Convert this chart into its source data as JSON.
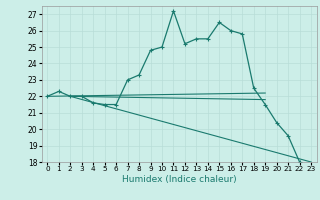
{
  "xlabel": "Humidex (Indice chaleur)",
  "bg_color": "#cceee8",
  "grid_color": "#b8ddd8",
  "line_color": "#1a7a6e",
  "xlim": [
    -0.5,
    23.5
  ],
  "ylim": [
    18,
    27.5
  ],
  "yticks": [
    18,
    19,
    20,
    21,
    22,
    23,
    24,
    25,
    26,
    27
  ],
  "xticks": [
    0,
    1,
    2,
    3,
    4,
    5,
    6,
    7,
    8,
    9,
    10,
    11,
    12,
    13,
    14,
    15,
    16,
    17,
    18,
    19,
    20,
    21,
    22,
    23
  ],
  "main_x": [
    0,
    1,
    2,
    3,
    4,
    5,
    6,
    7,
    8,
    9,
    10,
    11,
    12,
    13,
    14,
    15,
    16,
    17,
    18,
    19,
    20,
    21,
    22
  ],
  "main_y": [
    22,
    22.3,
    22.0,
    22.0,
    21.6,
    21.5,
    21.5,
    23.0,
    23.3,
    24.8,
    25.0,
    27.2,
    25.2,
    25.5,
    25.5,
    26.5,
    26.0,
    25.8,
    22.5,
    21.5,
    20.4,
    19.6,
    18.0
  ],
  "lines": [
    {
      "x": [
        0,
        19
      ],
      "y": [
        22,
        22.2
      ]
    },
    {
      "x": [
        2,
        19
      ],
      "y": [
        22,
        21.8
      ]
    },
    {
      "x": [
        2,
        23
      ],
      "y": [
        22,
        18.0
      ]
    }
  ]
}
